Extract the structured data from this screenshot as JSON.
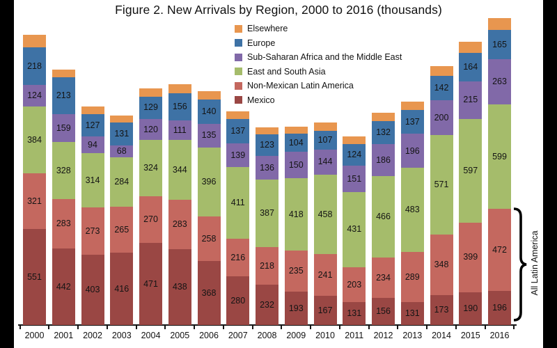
{
  "chart_data": {
    "type": "bar",
    "stacked": true,
    "title": "Figure 2. New Arrivals by Region, 2000 to 2016 (thousands)",
    "value_unit": "thousands",
    "grid": false,
    "legend_position": "top-center",
    "legend_order_top_to_bottom": [
      "Elsewhere",
      "Europe",
      "Sub-Saharan Africa and the Middle East",
      "East and South Asia",
      "Non-Mexican Latin America",
      "Mexico"
    ],
    "categories": [
      "2000",
      "2001",
      "2002",
      "2003",
      "2004",
      "2005",
      "2006",
      "2007",
      "2008",
      "2009",
      "2010",
      "2011",
      "2012",
      "2013",
      "2014",
      "2015",
      "2016"
    ],
    "series": [
      {
        "name": "Mexico",
        "color": "#9a4744",
        "values": [
          551,
          442,
          403,
          416,
          471,
          438,
          368,
          280,
          232,
          193,
          167,
          131,
          156,
          131,
          173,
          190,
          196
        ]
      },
      {
        "name": "Non-Mexican Latin America",
        "color": "#c4685f",
        "values": [
          321,
          283,
          273,
          265,
          270,
          283,
          258,
          216,
          218,
          235,
          241,
          203,
          234,
          289,
          348,
          399,
          472
        ]
      },
      {
        "name": "East and South Asia",
        "color": "#a5bc6b",
        "values": [
          384,
          328,
          314,
          284,
          324,
          344,
          396,
          411,
          387,
          418,
          458,
          431,
          466,
          483,
          571,
          597,
          599
        ]
      },
      {
        "name": "Sub-Saharan Africa and the Middle East",
        "color": "#8169a8",
        "values": [
          124,
          159,
          94,
          68,
          120,
          111,
          135,
          139,
          136,
          150,
          144,
          151,
          186,
          196,
          200,
          215,
          263
        ]
      },
      {
        "name": "Europe",
        "color": "#3e72a5",
        "values": [
          218,
          213,
          127,
          131,
          129,
          156,
          140,
          137,
          123,
          104,
          107,
          124,
          132,
          137,
          142,
          164,
          165
        ]
      },
      {
        "name": "Elsewhere",
        "color": "#e8964f",
        "labels_shown": false,
        "estimated": true,
        "values": [
          70,
          45,
          47,
          40,
          45,
          52,
          48,
          46,
          40,
          40,
          46,
          43,
          46,
          48,
          56,
          65,
          70
        ]
      }
    ],
    "annotation": {
      "text": "All Latin America",
      "target": "2016 bar: Mexico + Non-Mexican Latin America segments"
    }
  }
}
